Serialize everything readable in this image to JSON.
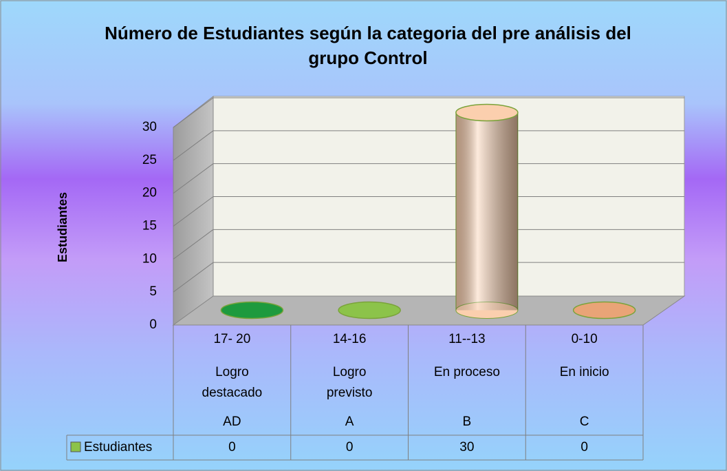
{
  "chart_data": {
    "type": "bar3d",
    "title": "Número de Estudiantes  según la categoria del pre análisis del grupo Control",
    "y_label": "Estudiantes",
    "categories": [
      [
        "17- 20",
        "Logro destacado",
        "AD"
      ],
      [
        "14-16",
        "Logro previsto",
        "A"
      ],
      [
        "11--13",
        "En proceso",
        "B"
      ],
      [
        "0-10",
        "En inicio",
        "C"
      ]
    ],
    "series": [
      {
        "name": "Estudiantes",
        "color": "#8cc34a",
        "values": [
          0,
          0,
          30,
          0
        ]
      }
    ],
    "colors": [
      "#1e9a3e",
      "#8cc34a",
      "#fbcfae",
      "#e9a477"
    ],
    "ylim": [
      0,
      30
    ],
    "yticks": [
      0,
      5,
      10,
      15,
      20,
      25,
      30
    ],
    "grid": true,
    "data_table": true
  }
}
